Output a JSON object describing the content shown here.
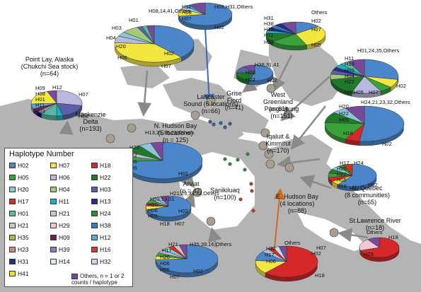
{
  "colors": {
    "H02": "#4a86c9",
    "H05": "#3ba23b",
    "H20": "#8cc6d9",
    "H17": "#d2311e",
    "H01": "#57b7a1",
    "H21": "#c8c8c8",
    "H35": "#9ac53b",
    "H23": "#d08882",
    "H31": "#1e2f8c",
    "H41": "#e8e02b",
    "H07": "#f2e640",
    "H06": "#b9b8de",
    "H04": "#a4c977",
    "H11": "#18b2c0",
    "H29": "#f1c8d3",
    "H09": "#6e1f58",
    "H39": "#8f7fb8",
    "H14": "#d6ecf0",
    "H18": "#d62828",
    "H22": "#1f7a2c",
    "H03": "#5b5fa7",
    "H13": "#2a2a84",
    "H24": "#2e8a2e",
    "H38": "#3a78c0",
    "H12": "#5fa8d6",
    "H16": "#d13a3a",
    "H32": "#c8d8f0",
    "Others": "#7a4a9a"
  },
  "legend": {
    "title": "Haplotype Number",
    "items": [
      [
        "H02",
        "H07",
        "H18"
      ],
      [
        "H05",
        "H06",
        "H22"
      ],
      [
        "H20",
        "H04",
        "H03"
      ],
      [
        "H17",
        "H11",
        "H13"
      ],
      [
        "H01",
        "H21",
        "H24"
      ],
      [
        "H21",
        "H29",
        "H38"
      ],
      [
        "H35",
        "H09",
        "H12"
      ],
      [
        "H23",
        "H39",
        "H16"
      ],
      [
        "H31",
        "H14",
        "H32"
      ],
      [
        "H41"
      ]
    ],
    "others_label": "Others, n = 1 or 2 counts / haplotype"
  },
  "populations": [
    {
      "name": "Point Lay, Alaska",
      "sub": "(Chukchi Sea stock)",
      "n": "(n=64)"
    },
    {
      "name": "Mackenzie",
      "sub": "Delta",
      "n": "(n=193)"
    },
    {
      "name": "Lancaster",
      "sub": "Sound (6 locations)",
      "n": "(n=66)"
    },
    {
      "name": "Grise",
      "sub": "Fiord",
      "n": "(n=41)"
    },
    {
      "name": "West",
      "sub": "Greenland",
      "n": "(n=61)"
    },
    {
      "name": "Pangnirtung",
      "sub": "",
      "n": "(n=151)"
    },
    {
      "name": "N. Hudson Bay",
      "sub": "(5 locations)",
      "n": "(n = 125)"
    },
    {
      "name": "Iqaluit &",
      "sub": "Kimmirut",
      "n": "(n=170)"
    },
    {
      "name": "Arviat",
      "sub": "",
      "n": "(n = 47)"
    },
    {
      "name": "Sanikiluaq",
      "sub": "",
      "n": "(n=100)"
    },
    {
      "name": "E. Hudson Bay",
      "sub": "(4 locations)",
      "n": "(n=88)"
    },
    {
      "name": "N. Quebec",
      "sub": "(8 communities)",
      "n": "(n=65)"
    },
    {
      "name": "St.Lawrence River",
      "sub": "",
      "n": "(n=18)"
    }
  ],
  "pie_labels": {
    "mackenzie": [
      "H08,14,41,Others",
      "H01",
      "H03",
      "H04",
      "H20",
      "H06",
      "H02",
      "H07"
    ],
    "lancaster": [
      "H11",
      "H06",
      "H07",
      "H08,H31,Others",
      "H02"
    ],
    "westgreenland": [
      "H31",
      "H38",
      "H13",
      "H11",
      "H22",
      "Others",
      "H02",
      "H07",
      "H05"
    ],
    "pointlay": [
      "H09",
      "H08",
      "H01",
      "H11",
      "H03",
      "H12",
      "H07",
      "H06"
    ],
    "grise": [
      "H38,31,41",
      "H03",
      "H22",
      "H02"
    ],
    "pangnirtung": [
      "H01,24,35,Others",
      "H11",
      "H13",
      "H03",
      "H04",
      "H22",
      "H06",
      "H05",
      "H07",
      "H02"
    ],
    "nhudson": [
      "H13,21,35,23,Others",
      "H20",
      "H22",
      "H06",
      "H05",
      "H02"
    ],
    "iqaluit": [
      "H24,21,23,32,Others",
      "H20",
      "H22",
      "H05",
      "H18",
      "H02"
    ],
    "nquebec": [
      "H17",
      "H24",
      "H20",
      "H22",
      "H05",
      "H18",
      "H07",
      "H02"
    ],
    "arviat": [
      "H21,23,39,32,Others",
      "H03,13,01",
      "H20",
      "H06",
      "H05",
      "H18",
      "H07",
      "H02"
    ],
    "sanikiluaq": [
      "H21",
      "H35,39,16,Others",
      "H17",
      "H20",
      "H06",
      "H05",
      "H07",
      "H02"
    ],
    "ehudson": [
      "Others",
      "H32",
      "H17",
      "H06",
      "H02",
      "H07",
      "H18"
    ],
    "stlawrence": [
      "Others",
      "H18",
      "H29"
    ]
  }
}
